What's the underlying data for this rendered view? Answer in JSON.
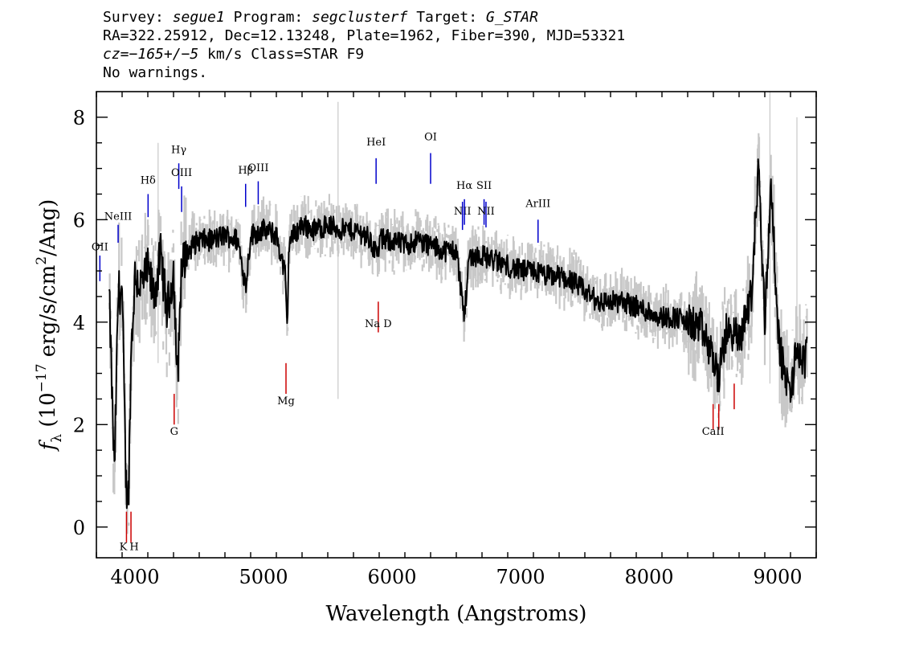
{
  "header": {
    "survey_label": "Survey:",
    "survey": "segue1",
    "program_label": "Program:",
    "program": "segclusterf",
    "target_label": "Target:",
    "target": "G_STAR",
    "line2": "RA=322.25912, Dec=12.13248, Plate=1962, Fiber=390, MJD=53321",
    "cz_label": "cz=",
    "cz_value": "−165+/−5",
    "cz_rest": " km/s Class=STAR F9",
    "line4": "No warnings."
  },
  "chart_data": {
    "type": "line",
    "xlabel": "Wavelength (Angstroms)",
    "ylabel": "f_λ (10^-17 erg/s/cm^2/Ang)",
    "xlim": [
      3700,
      9300
    ],
    "ylim": [
      -0.6,
      8.5
    ],
    "xticks": [
      4000,
      5000,
      6000,
      7000,
      8000,
      9000
    ],
    "yticks": [
      0,
      2,
      4,
      6,
      8
    ],
    "grid": false,
    "series": [
      {
        "color": "#000000",
        "x": [
          3800,
          3840,
          3870,
          3900,
          3930,
          3950,
          3970,
          4000,
          4050,
          4100,
          4150,
          4200,
          4250,
          4300,
          4330,
          4360,
          4400,
          4450,
          4500,
          4600,
          4700,
          4800,
          4862,
          4900,
          5000,
          5100,
          5170,
          5183,
          5200,
          5300,
          5400,
          5500,
          5600,
          5700,
          5800,
          5893,
          5900,
          6000,
          6100,
          6200,
          6300,
          6400,
          6500,
          6563,
          6600,
          6700,
          6800,
          6900,
          7000,
          7100,
          7200,
          7300,
          7400,
          7500,
          7600,
          7700,
          7800,
          7900,
          8000,
          8100,
          8200,
          8300,
          8400,
          8498,
          8542,
          8600,
          8662,
          8700,
          8800,
          8850,
          8900,
          8950,
          9000,
          9050,
          9100,
          9150,
          9200,
          9230
        ],
        "y": [
          4.5,
          1.0,
          4.6,
          4.6,
          0.8,
          0.6,
          3.4,
          4.9,
          4.7,
          5.0,
          4.5,
          5.3,
          4.2,
          5.0,
          2.8,
          5.0,
          5.3,
          5.5,
          5.6,
          5.6,
          5.7,
          5.6,
          4.7,
          5.7,
          5.8,
          5.7,
          4.9,
          3.8,
          5.6,
          5.9,
          5.8,
          5.9,
          5.8,
          5.8,
          5.7,
          5.3,
          5.6,
          5.6,
          5.5,
          5.6,
          5.5,
          5.4,
          5.4,
          4.1,
          5.3,
          5.3,
          5.2,
          5.1,
          5.0,
          5.0,
          4.9,
          4.9,
          4.8,
          4.6,
          4.4,
          4.4,
          4.4,
          4.3,
          4.2,
          4.1,
          4.1,
          4.0,
          3.9,
          3.3,
          2.9,
          3.8,
          3.8,
          3.6,
          4.6,
          7.1,
          4.0,
          6.8,
          3.8,
          3.0,
          2.6,
          3.5,
          3.2,
          3.4
        ]
      }
    ],
    "line_labels_emission": [
      {
        "label": "OII",
        "x": 3727
      },
      {
        "label": "NeIII",
        "x": 3869
      },
      {
        "label": "Hδ",
        "x": 4102
      },
      {
        "label": "Hγ",
        "x": 4341
      },
      {
        "label": "OIII",
        "x": 4363
      },
      {
        "label": "Hβ",
        "x": 4861
      },
      {
        "label": "OIII",
        "x": 4959
      },
      {
        "label": "HeI",
        "x": 5876
      },
      {
        "label": "OI",
        "x": 6300
      },
      {
        "label": "NII",
        "x": 6548
      },
      {
        "label": "Hα",
        "x": 6563
      },
      {
        "label": "SII",
        "x": 6716
      },
      {
        "label": "NII",
        "x": 6731
      },
      {
        "label": "ArIII",
        "x": 7136
      }
    ],
    "line_labels_absorption": [
      {
        "label": "K",
        "x": 3934
      },
      {
        "label": "H",
        "x": 3969
      },
      {
        "label": "G",
        "x": 4305
      },
      {
        "label": "Mg",
        "x": 5175
      },
      {
        "label": "Na D",
        "x": 5893
      },
      {
        "label": "CaII",
        "x": 8498
      }
    ]
  }
}
